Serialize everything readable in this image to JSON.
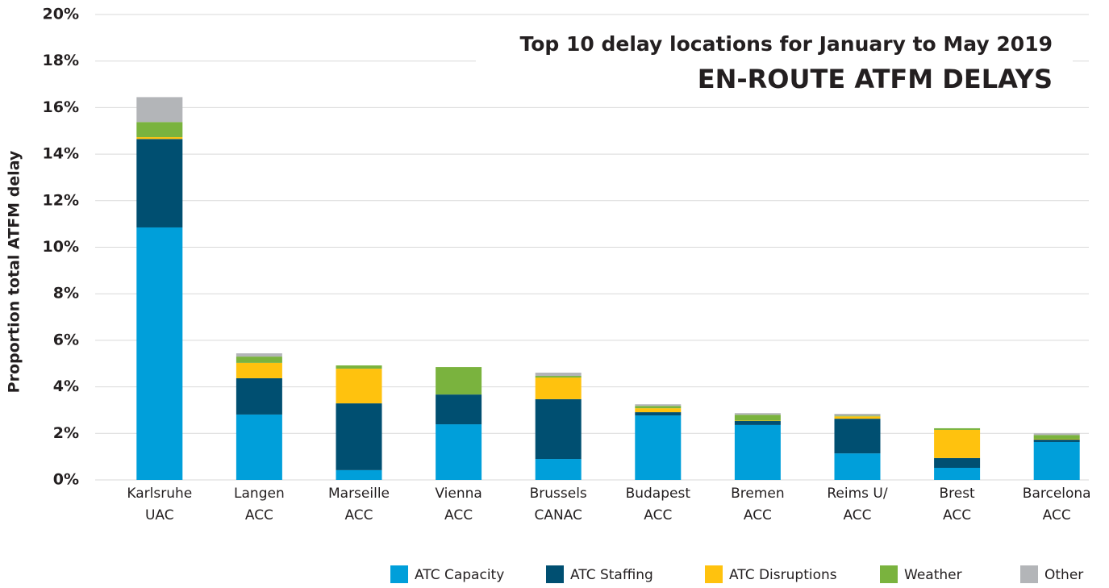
{
  "chart_data": {
    "type": "stacked_bar",
    "title": "Top 10 delay locations for January to May 2019",
    "subtitle": "EN-ROUTE ATFM DELAYS",
    "y_label": "Proportion total ATFM delay",
    "categories": [
      [
        "Karlsruhe",
        "UAC"
      ],
      [
        "Langen",
        "ACC"
      ],
      [
        "Marseille",
        "ACC"
      ],
      [
        "Vienna",
        "ACC"
      ],
      [
        "Brussels",
        "CANAC"
      ],
      [
        "Budapest",
        "ACC"
      ],
      [
        "Bremen",
        "ACC"
      ],
      [
        "Reims U/",
        "ACC"
      ],
      [
        "Brest",
        "ACC"
      ],
      [
        "Barcelona",
        "ACC"
      ]
    ],
    "series": [
      {
        "name": "ATC Capacity",
        "color": "#009fda",
        "values": [
          10.85,
          2.81,
          0.42,
          2.39,
          0.9,
          2.77,
          2.36,
          1.14,
          0.52,
          1.63
        ]
      },
      {
        "name": "ATC Staffing",
        "color": "#004f71",
        "values": [
          3.8,
          1.56,
          2.87,
          1.28,
          2.57,
          0.14,
          0.17,
          1.49,
          0.42,
          0.1
        ]
      },
      {
        "name": "ATC Disruptions",
        "color": "#ffc20e",
        "values": [
          0.08,
          0.66,
          1.49,
          0,
          0.93,
          0.17,
          0.02,
          0.1,
          1.21,
          0.02
        ]
      },
      {
        "name": "Weather",
        "color": "#7ab33e",
        "values": [
          0.65,
          0.27,
          0.14,
          1.18,
          0.07,
          0.1,
          0.25,
          0.03,
          0.07,
          0.18
        ]
      },
      {
        "name": "Other",
        "color": "#b3b5b8",
        "values": [
          1.07,
          0.14,
          0,
          0,
          0.14,
          0.07,
          0.07,
          0.08,
          0,
          0.07
        ]
      }
    ],
    "ylim": [
      0,
      20
    ],
    "yticks": [
      {
        "value": 0,
        "label": "0%"
      },
      {
        "value": 2,
        "label": "2%"
      },
      {
        "value": 4,
        "label": "4%"
      },
      {
        "value": 6,
        "label": "6%"
      },
      {
        "value": 8,
        "label": "8%"
      },
      {
        "value": 10,
        "label": "10%"
      },
      {
        "value": 12,
        "label": "12%"
      },
      {
        "value": 14,
        "label": "14%"
      },
      {
        "value": 16,
        "label": "16%"
      },
      {
        "value": 18,
        "label": "18%"
      },
      {
        "value": 20,
        "label": "20%"
      }
    ],
    "grid": true,
    "legend": "bottom-right"
  }
}
